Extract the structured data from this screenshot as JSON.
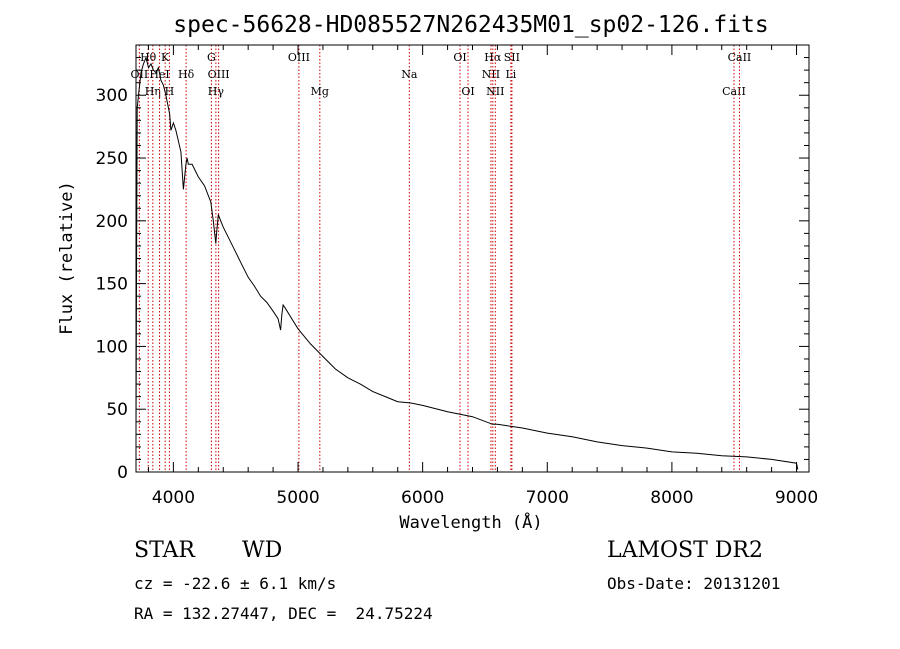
{
  "chart_data": {
    "type": "line",
    "title": "spec-56628-HD085527N262435M01_sp02-126.fits",
    "xlabel": "Wavelength (Å)",
    "ylabel": "Flux (relative)",
    "xlim": [
      3700,
      9100
    ],
    "ylim": [
      0,
      340
    ],
    "x_ticks": [
      4000,
      5000,
      6000,
      7000,
      8000,
      9000
    ],
    "y_ticks": [
      0,
      50,
      100,
      150,
      200,
      250,
      300
    ],
    "line_color": "#000000",
    "marker_color": "#cc0000",
    "series": [
      {
        "x": [
          3700,
          3705,
          3710,
          3720,
          3740,
          3760,
          3780,
          3800,
          3820,
          3840,
          3860,
          3880,
          3900,
          3920,
          3940,
          3960,
          3970,
          3980,
          4000,
          4020,
          4060,
          4080,
          4100,
          4110,
          4120,
          4150,
          4200,
          4250,
          4300,
          4320,
          4340,
          4345,
          4360,
          4380,
          4400,
          4450,
          4500,
          4550,
          4600,
          4650,
          4700,
          4750,
          4800,
          4840,
          4860,
          4870,
          4880,
          4900,
          4950,
          5000,
          5100,
          5200,
          5300,
          5400,
          5500,
          5600,
          5700,
          5800,
          5900,
          6000,
          6200,
          6400,
          6562,
          6600,
          6800,
          7000,
          7200,
          7400,
          7600,
          7800,
          8000,
          8200,
          8400,
          8600,
          8800,
          9000,
          9010
        ],
        "y": [
          30,
          175,
          290,
          300,
          318,
          325,
          330,
          322,
          325,
          320,
          318,
          322,
          312,
          308,
          300,
          290,
          285,
          272,
          278,
          272,
          255,
          225,
          245,
          250,
          245,
          245,
          235,
          228,
          215,
          200,
          182,
          188,
          205,
          200,
          195,
          185,
          175,
          165,
          155,
          148,
          140,
          135,
          128,
          122,
          113,
          125,
          133,
          130,
          122,
          114,
          102,
          92,
          82,
          75,
          70,
          64,
          60,
          56,
          55,
          53,
          48,
          44,
          38,
          38,
          35,
          31,
          28,
          24,
          21,
          19,
          16,
          15,
          13,
          12,
          10,
          7,
          2
        ]
      }
    ],
    "line_markers": [
      {
        "name": "OII",
        "x": 3727,
        "row": 2
      },
      {
        "name": "Hθ",
        "x": 3798,
        "row": 1
      },
      {
        "name": "Hη",
        "x": 3835,
        "row": 3
      },
      {
        "name": "HeI",
        "x": 3889,
        "row": 2
      },
      {
        "name": "K",
        "x": 3934,
        "row": 1
      },
      {
        "name": "H",
        "x": 3968,
        "row": 3
      },
      {
        "name": "Hδ",
        "x": 4102,
        "row": 2
      },
      {
        "name": "G",
        "x": 4305,
        "row": 1
      },
      {
        "name": "Hγ",
        "x": 4341,
        "row": 3
      },
      {
        "name": "OIII",
        "x": 4363,
        "row": 2
      },
      {
        "name": "OIII",
        "x": 5007,
        "row": 1
      },
      {
        "name": "Mg",
        "x": 5175,
        "row": 3
      },
      {
        "name": "Na",
        "x": 5893,
        "row": 2
      },
      {
        "name": "OI",
        "x": 6300,
        "row": 1
      },
      {
        "name": "OI",
        "x": 6364,
        "row": 3
      },
      {
        "name": "NII",
        "x": 6548,
        "row": 2
      },
      {
        "name": "Hα",
        "x": 6563,
        "row": 1
      },
      {
        "name": "NII",
        "x": 6583,
        "row": 3
      },
      {
        "name": "SII",
        "x": 6716,
        "row": 1
      },
      {
        "name": "Li",
        "x": 6708,
        "row": 2
      },
      {
        "name": "CaII",
        "x": 8498,
        "row": 3
      },
      {
        "name": "CaII",
        "x": 8542,
        "row": 1
      }
    ]
  },
  "footer": {
    "object_class": "STAR",
    "subclass": "WD",
    "survey": "LAMOST DR2",
    "redshift": "cz = -22.6 ± 6.1 km/s",
    "obs_date": "Obs-Date: 20131201",
    "coords": "RA = 132.27447, DEC =  24.75224"
  }
}
